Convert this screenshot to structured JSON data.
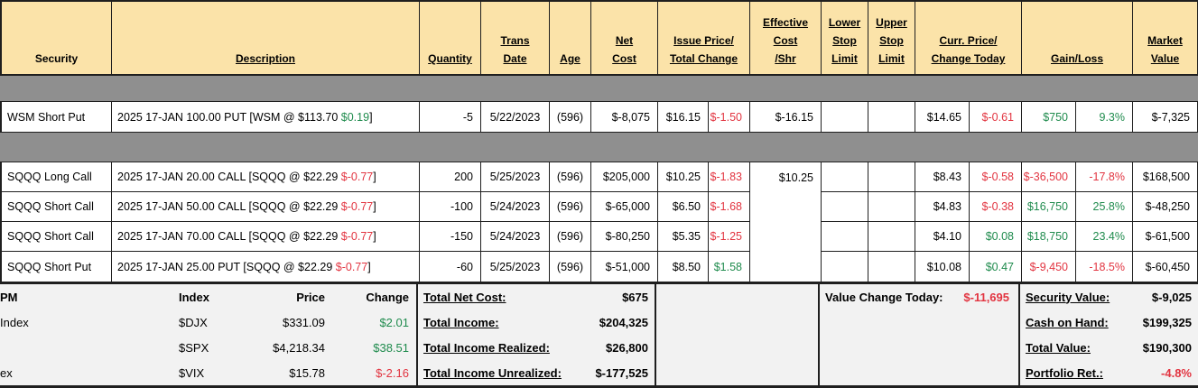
{
  "colors": {
    "negative_text": "#e23440",
    "positive_text": "#1f8b4d",
    "header_background": "#fbe3a9",
    "separator_gray": "#8f8f8f",
    "footer_background": "#f2f2f2",
    "border": "#1f1f1f"
  },
  "header": {
    "columns": [
      {
        "id": "security",
        "label": "Security",
        "underline": false
      },
      {
        "id": "description",
        "label": "Description",
        "underline": true
      },
      {
        "id": "quantity",
        "label": "Quantity",
        "underline": true
      },
      {
        "id": "trans-date",
        "label": "Trans\nDate",
        "underline": true
      },
      {
        "id": "age",
        "label": "Age",
        "underline": true
      },
      {
        "id": "net-cost",
        "label": "Net\nCost",
        "underline": true
      },
      {
        "id": "issue-price-total-change",
        "label": "Issue Price/\nTotal Change",
        "underline": true
      },
      {
        "id": "effective-cost-shr",
        "label": "Effective\nCost\n/Shr",
        "underline": true
      },
      {
        "id": "lower-stop-limit",
        "label": "Lower\nStop\nLimit",
        "underline": true
      },
      {
        "id": "upper-stop-limit",
        "label": "Upper\nStop\nLimit",
        "underline": true
      },
      {
        "id": "curr-price-change-today",
        "label": "Curr. Price/\nChange Today",
        "underline": true
      },
      {
        "id": "gain-loss",
        "label": "Gain/Loss",
        "underline": true
      },
      {
        "id": "market-value",
        "label": "Market\nValue",
        "underline": true
      }
    ]
  },
  "positions": {
    "wsm": {
      "security": "WSM Short Put",
      "desc_pre": "2025 17-JAN 100.00 PUT [WSM @ $113.70 ",
      "desc_chg": "$0.19",
      "desc_chg_tone": "green",
      "desc_post": "]",
      "quantity": "-5",
      "trans_date": "5/22/2023",
      "age": "(596)",
      "net_cost": "$-8,075",
      "issue_price": "$16.15",
      "total_change": "$-1.50",
      "total_change_tone": "red",
      "effective_cost": "$-16.15",
      "lower_stop": "",
      "upper_stop": "",
      "curr_price": "$14.65",
      "change_today": "$-0.61",
      "change_today_tone": "red",
      "gain_loss": "$750",
      "gain_loss_tone": "green",
      "gain_loss_pct": "9.3%",
      "gain_loss_pct_tone": "green",
      "market_value": "$-7,325"
    },
    "sqqq_effective_cost": "$10.25",
    "sqqq": [
      {
        "security": "SQQQ Long Call",
        "desc_pre": "2025 17-JAN 20.00 CALL [SQQQ @ $22.29 ",
        "desc_chg": "$-0.77",
        "desc_chg_tone": "red",
        "desc_post": "]",
        "quantity": "200",
        "trans_date": "5/25/2023",
        "age": "(596)",
        "net_cost": "$205,000",
        "issue_price": "$10.25",
        "total_change": "$-1.83",
        "total_change_tone": "red",
        "lower_stop": "",
        "upper_stop": "",
        "curr_price": "$8.43",
        "change_today": "$-0.58",
        "change_today_tone": "red",
        "gain_loss": "$-36,500",
        "gain_loss_tone": "red",
        "gain_loss_pct": "-17.8%",
        "gain_loss_pct_tone": "red",
        "market_value": "$168,500"
      },
      {
        "security": "SQQQ Short Call",
        "desc_pre": "2025 17-JAN 50.00 CALL [SQQQ @ $22.29 ",
        "desc_chg": "$-0.77",
        "desc_chg_tone": "red",
        "desc_post": "]",
        "quantity": "-100",
        "trans_date": "5/24/2023",
        "age": "(596)",
        "net_cost": "$-65,000",
        "issue_price": "$6.50",
        "total_change": "$-1.68",
        "total_change_tone": "red",
        "lower_stop": "",
        "upper_stop": "",
        "curr_price": "$4.83",
        "change_today": "$-0.38",
        "change_today_tone": "red",
        "gain_loss": "$16,750",
        "gain_loss_tone": "green",
        "gain_loss_pct": "25.8%",
        "gain_loss_pct_tone": "green",
        "market_value": "$-48,250"
      },
      {
        "security": "SQQQ Short Call",
        "desc_pre": "2025 17-JAN 70.00 CALL [SQQQ @ $22.29 ",
        "desc_chg": "$-0.77",
        "desc_chg_tone": "red",
        "desc_post": "]",
        "quantity": "-150",
        "trans_date": "5/24/2023",
        "age": "(596)",
        "net_cost": "$-80,250",
        "issue_price": "$5.35",
        "total_change": "$-1.25",
        "total_change_tone": "red",
        "lower_stop": "",
        "upper_stop": "",
        "curr_price": "$4.10",
        "change_today": "$0.08",
        "change_today_tone": "green",
        "gain_loss": "$18,750",
        "gain_loss_tone": "green",
        "gain_loss_pct": "23.4%",
        "gain_loss_pct_tone": "green",
        "market_value": "$-61,500"
      },
      {
        "security": "SQQQ Short Put",
        "desc_pre": "2025 17-JAN 25.00 PUT [SQQQ @ $22.29 ",
        "desc_chg": "$-0.77",
        "desc_chg_tone": "red",
        "desc_post": "]",
        "quantity": "-60",
        "trans_date": "5/25/2023",
        "age": "(596)",
        "net_cost": "$-51,000",
        "issue_price": "$8.50",
        "total_change": "$1.58",
        "total_change_tone": "green",
        "lower_stop": "",
        "upper_stop": "",
        "curr_price": "$10.08",
        "change_today": "$0.47",
        "change_today_tone": "green",
        "gain_loss": "$-9,450",
        "gain_loss_tone": "red",
        "gain_loss_pct": "-18.5%",
        "gain_loss_pct_tone": "red",
        "market_value": "$-60,450"
      }
    ]
  },
  "footer": {
    "market_indexes": {
      "headers": {
        "name": "PM",
        "symbol": "Index",
        "price": "Price",
        "change": "Change"
      },
      "rows": [
        {
          "name": "Index",
          "symbol": "$DJX",
          "price": "$331.09",
          "change": "$2.01",
          "tone": "green"
        },
        {
          "name": "",
          "symbol": "$SPX",
          "price": "$4,218.34",
          "change": "$38.51",
          "tone": "green"
        },
        {
          "name": "ex",
          "symbol": "$VIX",
          "price": "$15.78",
          "change": "$-2.16",
          "tone": "red"
        }
      ]
    },
    "totals": {
      "rows": [
        {
          "label": "Total Net Cost:",
          "value": "$675"
        },
        {
          "label": "Total Income:",
          "value": "$204,325"
        },
        {
          "label": "Total Income Realized:",
          "value": "$26,800"
        },
        {
          "label": "Total Income Unrealized:",
          "value": "$-177,525"
        }
      ]
    },
    "value_change": {
      "label": "Value Change Today:",
      "value": "$-11,695",
      "tone": "red"
    },
    "portfolio": {
      "rows": [
        {
          "label": "Security Value:",
          "value": "$-9,025",
          "tone": "black"
        },
        {
          "label": "Cash on Hand:",
          "value": "$199,325",
          "tone": "black"
        },
        {
          "label": "Total Value:",
          "value": "$190,300",
          "tone": "black"
        },
        {
          "label": "Portfolio Ret.:",
          "value": "-4.8%",
          "tone": "red"
        }
      ]
    }
  }
}
